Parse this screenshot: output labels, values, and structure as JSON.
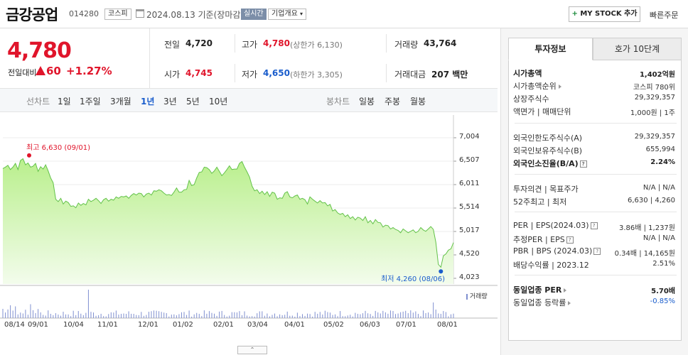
{
  "header": {
    "stock_name": "금강공업",
    "stock_code": "014280",
    "market": "코스피",
    "date_text": "2024.08.13  기준(장마감)",
    "realtime": "실시간",
    "company_overview": "기업개요",
    "mystock_plus": "+",
    "mystock_label": "MY STOCK 추가",
    "quick_order": "빠른주문"
  },
  "price": {
    "current": "4,780",
    "compare_label": "전일대비",
    "change": "60",
    "change_pct": "+1.27%"
  },
  "quote": {
    "prev_label": "전일",
    "prev": "4,720",
    "high_label": "고가",
    "high": "4,780",
    "upper_limit": "(상한가 6,130)",
    "volume_label": "거래량",
    "volume": "43,764",
    "open_label": "시가",
    "open": "4,745",
    "low_label": "저가",
    "low": "4,650",
    "lower_limit": "(하한가 3,305)",
    "amount_label": "거래대금",
    "amount": "207 백만"
  },
  "periods": {
    "line_label": "선차트",
    "line_items": [
      "1일",
      "1주일",
      "3개월",
      "1년",
      "3년",
      "5년",
      "10년"
    ],
    "active": "1년",
    "candle_label": "봉차트",
    "candle_items": [
      "일봉",
      "주봉",
      "월봉"
    ]
  },
  "chart_data": {
    "type": "area",
    "y_ticks": [
      "7,004",
      "6,507",
      "6,011",
      "5,514",
      "5,017",
      "4,520",
      "4,023"
    ],
    "ylim": [
      4023,
      7004
    ],
    "x_ticks": [
      "08/14",
      "09/01",
      "10/04",
      "11/01",
      "12/01",
      "01/02",
      "02/01",
      "03/04",
      "04/01",
      "05/02",
      "06/03",
      "07/01",
      "08/01"
    ],
    "series": [
      {
        "values": [
          6350,
          6380,
          6420,
          6330,
          6380,
          6460,
          6330,
          6520,
          6560,
          6430,
          6470,
          6380,
          6400,
          6460,
          6290,
          6390,
          6340,
          6430,
          6300,
          6150,
          6050,
          5700,
          5650,
          5720,
          5600,
          5660,
          5630,
          5550,
          5560,
          5520,
          5620,
          5570,
          5610,
          5580,
          5700,
          5650,
          5680,
          5720,
          5670,
          5610,
          5690,
          5720,
          5660,
          5700,
          5680,
          5750,
          5720,
          5760,
          5750,
          5770,
          5720,
          5780,
          5820,
          5790,
          5830,
          5820,
          5750,
          5810,
          5830,
          5790,
          5880,
          5870,
          5900,
          5880,
          5830,
          5790,
          5800,
          5780,
          5850,
          5940,
          5850,
          5850,
          5900,
          5910,
          6100,
          5990,
          6010,
          6150,
          6270,
          6280,
          6380,
          6370,
          6330,
          6250,
          6300,
          6380,
          6290,
          6200,
          6260,
          6330,
          6410,
          6330,
          6340,
          6340,
          6460,
          6500,
          6380,
          6280,
          6170,
          5980,
          5880,
          5900,
          5820,
          5870,
          5800,
          5860,
          5760,
          5850,
          5830,
          5700,
          5730,
          5720,
          5830,
          5860,
          5750,
          5730,
          5770,
          5790,
          5700,
          5720,
          5690,
          5600,
          5750,
          5700,
          5660,
          5620,
          5670,
          5620,
          5630,
          5560,
          5590,
          5450,
          5480,
          5410,
          5380,
          5400,
          5330,
          5370,
          5290,
          5330,
          5260,
          5320,
          5300,
          5250,
          5330,
          5200,
          5250,
          5180,
          5270,
          5210,
          5200,
          5110,
          5150,
          5140,
          5070,
          5100,
          5060,
          5040,
          4990,
          5070,
          5030,
          4990,
          5020,
          5050,
          4990,
          5020,
          5100,
          5050,
          5020,
          5070,
          5120,
          5060,
          4790,
          4320,
          4260,
          4500,
          4540,
          4620,
          4650,
          4780
        ]
      }
    ],
    "high_annotation": "최고 6,630 (09/01)",
    "low_annotation": "최저 4,260 (08/06)",
    "volume_label": "거래량",
    "colors": {
      "fill": "#b9ef8c",
      "line": "#63c24a",
      "high": "#e0152b",
      "low": "#1a5dcc"
    }
  },
  "scroll_glyph": "⌃",
  "right_panel": {
    "tab_active": "투자정보",
    "tab_inactive": "호가 10단계",
    "rows": [
      {
        "label": "시가총액",
        "value": "1,402억원",
        "bold": true
      },
      {
        "label": "시가총액순위",
        "value": "코스피 780위"
      },
      {
        "label": "상장주식수",
        "value": "29,329,357"
      },
      {
        "label": "액면가 | 매매단위",
        "value": "1,000원 | 1주"
      },
      {
        "label": "외국인한도주식수(A)",
        "value": "29,329,357"
      },
      {
        "label": "외국인보유주식수(B)",
        "value": "655,994"
      },
      {
        "label": "외국인소진율(B/A)",
        "value": "2.24%",
        "bold": true
      },
      {
        "label": "투자의견 | 목표주가",
        "value": "N/A | N/A"
      },
      {
        "label": "52주최고 | 최저",
        "value": "6,630 | 4,260"
      },
      {
        "label": "PER | EPS(2024.03)",
        "value": "3.86배 | 1,237원"
      },
      {
        "label": "추정PER | EPS",
        "value": "N/A | N/A"
      },
      {
        "label": "PBR | BPS (2024.03)",
        "value": "0.34배 | 14,165원"
      },
      {
        "label": "배당수익률 | 2023.12",
        "value": "2.51%"
      },
      {
        "label": "동일업종 PER",
        "value": "5.70배",
        "bold": true
      },
      {
        "label": "동일업종 등락률",
        "value": "-0.85%"
      }
    ]
  }
}
